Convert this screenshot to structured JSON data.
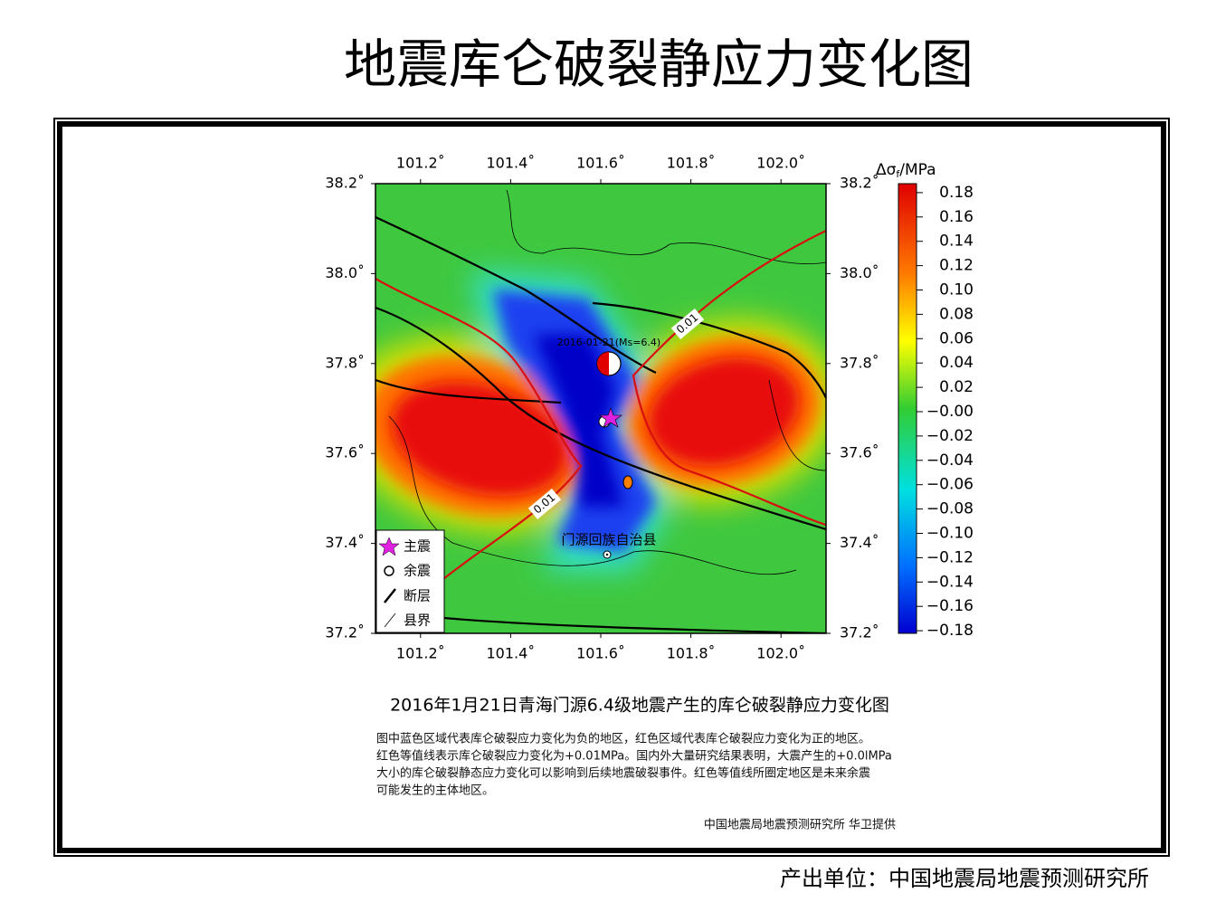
{
  "title": "地震库仑破裂静应力变化图",
  "map": {
    "lon_ticks": [
      {
        "value": 101.2,
        "label": "101.2˚"
      },
      {
        "value": 101.4,
        "label": "101.4˚"
      },
      {
        "value": 101.6,
        "label": "101.6˚"
      },
      {
        "value": 101.8,
        "label": "101.8˚"
      },
      {
        "value": 102.0,
        "label": "102.0˚"
      }
    ],
    "lat_ticks": [
      {
        "value": 38.2,
        "label": "38.2˚"
      },
      {
        "value": 38.0,
        "label": "38.0˚"
      },
      {
        "value": 37.8,
        "label": "37.8˚"
      },
      {
        "value": 37.6,
        "label": "37.6˚"
      },
      {
        "value": 37.4,
        "label": "37.4˚"
      },
      {
        "value": 37.2,
        "label": "37.2˚"
      }
    ],
    "colorbar": {
      "title": "Δσ",
      "title_sub": "f",
      "title_unit": "/MPa",
      "ticks": [
        0.18,
        0.16,
        0.14,
        0.12,
        {
          "value": 0.1,
          "label": "0.10"
        },
        0.08,
        0.06,
        0.04,
        0.02,
        {
          "value": 0,
          "label": "−0.00"
        },
        {
          "value": -0.02,
          "label": "−0.02"
        },
        {
          "value": -0.04,
          "label": "−0.04"
        },
        {
          "value": -0.06,
          "label": "−0.06"
        },
        {
          "value": -0.08,
          "label": "−0.08"
        },
        {
          "value": -0.1,
          "label": "−0.10"
        },
        {
          "value": -0.12,
          "label": "−0.12"
        },
        {
          "value": -0.14,
          "label": "−0.14"
        },
        {
          "value": -0.16,
          "label": "−0.16"
        },
        {
          "value": -0.18,
          "label": "−0.18"
        }
      ]
    },
    "event_label": "2016-01-21(Ms=6.4)",
    "contour_labels": [
      "0.01",
      "0.01"
    ],
    "county": "门源回族自治县",
    "legend": [
      "主震",
      "余震",
      "断层",
      "县界"
    ]
  },
  "caption": {
    "title": "2016年1月21日青海门源6.4级地震产生的库仑破裂静应力变化图",
    "lines": [
      "图中蓝色区域代表库仑破裂应力变化为负的地区，红色区域代表库仑破裂应力变化为正的地区。",
      "红色等值线表示库仑破裂应力变化为+0.01MPa。国内外大量研究结果表明，大震产生的+0.0lMPa",
      "大小的库仑破裂静态应力变化可以影响到后续地震破裂事件。红色等值线所圈定地区是未来余震",
      "可能发生的主体地区。"
    ],
    "credit": "中国地震局地震预测研究所 华卫提供"
  },
  "footer": "产出单位：中国地震局地震预测研究所"
}
